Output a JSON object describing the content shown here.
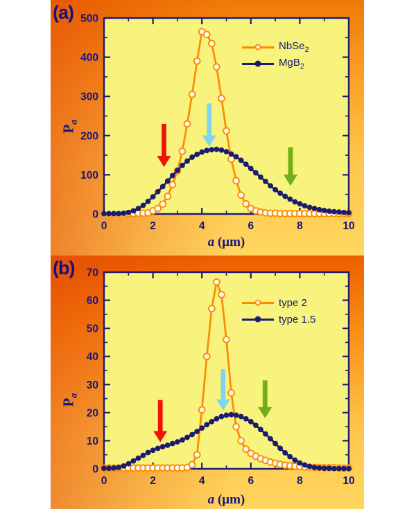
{
  "colors": {
    "plot_bg": "#f7f37c",
    "axis": "#1b1c72",
    "tick_label": "#15177a",
    "corner_label": "#12127d",
    "orange_series": "#ff8a00",
    "navy_series": "#1a1c70",
    "arrow_red": "#ee1409",
    "arrow_cyan": "#7fd4f2",
    "arrow_green": "#72ae17"
  },
  "chart_data": [
    {
      "type": "line",
      "corner_label": "(a)",
      "x_axis": {
        "title_parts": [
          {
            "t": "a",
            "italic": true
          },
          {
            "t": " (μm)"
          }
        ],
        "min": 0,
        "max": 10,
        "major_tick_step": 2,
        "minor_tick_step": 1,
        "tick_labels": [
          "0",
          "2",
          "4",
          "6",
          "8",
          "10"
        ]
      },
      "y_axis": {
        "title_parts": [
          {
            "t": "P"
          },
          {
            "t": "a",
            "sub": true,
            "italic": true
          }
        ],
        "min": 0,
        "max": 500,
        "major_tick_step": 100,
        "minor_tick_step": 50,
        "tick_labels": [
          "0",
          "100",
          "200",
          "300",
          "400",
          "500"
        ]
      },
      "legend_position": "upper-right",
      "series": [
        {
          "name": "NbSe2",
          "label_parts": [
            {
              "t": "NbSe"
            },
            {
              "t": "2",
              "sub": true
            }
          ],
          "color": "#ff8a00",
          "marker": "open",
          "x_start": 1.0,
          "x_step": 0.2,
          "values": [
            1,
            1,
            2,
            2,
            3,
            8,
            14,
            25,
            45,
            75,
            110,
            160,
            230,
            305,
            390,
            465,
            458,
            435,
            375,
            295,
            212,
            140,
            85,
            48,
            26,
            14,
            8,
            5,
            3,
            2,
            2,
            1,
            1,
            1,
            1,
            1,
            1,
            1,
            1,
            1,
            1,
            1,
            1,
            1,
            1,
            1
          ]
        },
        {
          "name": "MgB2",
          "label_parts": [
            {
              "t": "MgB"
            },
            {
              "t": "2",
              "sub": true
            }
          ],
          "color": "#1a1c70",
          "marker": "filled",
          "x_start": 0,
          "x_step": 0.2,
          "values": [
            1,
            1,
            1,
            1,
            2,
            4,
            8,
            14,
            22,
            32,
            44,
            57,
            70,
            84,
            98,
            111,
            124,
            135,
            145,
            152,
            158,
            162,
            164,
            165,
            163,
            159,
            153,
            146,
            137,
            127,
            116,
            105,
            94,
            83,
            72,
            62,
            53,
            45,
            38,
            31,
            26,
            21,
            17,
            14,
            11,
            9,
            7,
            6,
            5,
            4,
            3
          ]
        }
      ],
      "arrows": [
        {
          "name": "red-arrow",
          "color": "#ee1409",
          "x": 2.45,
          "tip_value": 120,
          "tail_value": 230
        },
        {
          "name": "cyan-arrow",
          "color": "#7fd4f2",
          "x": 4.3,
          "tip_value": 172,
          "tail_value": 282
        },
        {
          "name": "green-arrow",
          "color": "#72ae17",
          "x": 7.62,
          "tip_value": 72,
          "tail_value": 170
        }
      ]
    },
    {
      "type": "line",
      "corner_label": "(b)",
      "x_axis": {
        "title_parts": [
          {
            "t": "a",
            "italic": true
          },
          {
            "t": " (μm)"
          }
        ],
        "min": 0,
        "max": 10,
        "major_tick_step": 2,
        "minor_tick_step": 1,
        "tick_labels": [
          "0",
          "2",
          "4",
          "6",
          "8",
          "10"
        ]
      },
      "y_axis": {
        "title_parts": [
          {
            "t": "P"
          },
          {
            "t": "a",
            "sub": true,
            "italic": true
          }
        ],
        "min": 0,
        "max": 70,
        "major_tick_step": 10,
        "minor_tick_step": 5,
        "tick_labels": [
          "0",
          "10",
          "20",
          "30",
          "40",
          "50",
          "60",
          "70"
        ]
      },
      "legend_position": "upper-right",
      "series": [
        {
          "name": "type 2",
          "label_parts": [
            {
              "t": "type 2"
            }
          ],
          "color": "#ff8a00",
          "marker": "open",
          "x_start": 0,
          "x_step": 0.2,
          "values": [
            0.3,
            0.3,
            0.3,
            0.3,
            0.3,
            0.3,
            0.3,
            0.3,
            0.3,
            0.3,
            0.3,
            0.3,
            0.3,
            0.3,
            0.3,
            0.3,
            0.3,
            0.5,
            1.5,
            5,
            21,
            40,
            57,
            66.5,
            62,
            46,
            27,
            15,
            10,
            7,
            5.5,
            4.5,
            3.6,
            3,
            2.4,
            2,
            1.6,
            1.3,
            1.1,
            0.9,
            0.8,
            0.7,
            0.6,
            0.5,
            0.5,
            0.4,
            0.4,
            0.4,
            0.3,
            0.3,
            0.3
          ]
        },
        {
          "name": "type 1.5",
          "label_parts": [
            {
              "t": "type 1.5"
            }
          ],
          "color": "#1a1c70",
          "marker": "filled",
          "x_start": 0,
          "x_step": 0.2,
          "values": [
            0.2,
            0.2,
            0.3,
            0.5,
            1,
            1.8,
            2.8,
            3.8,
            4.8,
            5.8,
            6.6,
            7.3,
            7.9,
            8.4,
            9,
            9.6,
            10.3,
            11.2,
            12.2,
            13.3,
            14.5,
            15.7,
            16.8,
            17.8,
            18.6,
            19.1,
            19.3,
            19.1,
            18.6,
            17.8,
            16.8,
            15.5,
            14,
            12.4,
            10.7,
            9,
            7.3,
            5.7,
            4.3,
            3.1,
            2.1,
            1.4,
            0.9,
            0.5,
            0.3,
            0.2,
            0.2,
            0.1,
            0.1,
            0.1,
            0.1
          ]
        }
      ],
      "arrows": [
        {
          "name": "red-arrow",
          "color": "#ee1409",
          "x": 2.3,
          "tip_value": 9.5,
          "tail_value": 24.5
        },
        {
          "name": "cyan-arrow",
          "color": "#7fd4f2",
          "x": 4.87,
          "tip_value": 20.8,
          "tail_value": 35.5
        },
        {
          "name": "green-arrow",
          "color": "#72ae17",
          "x": 6.58,
          "tip_value": 18,
          "tail_value": 31.5
        }
      ]
    }
  ]
}
